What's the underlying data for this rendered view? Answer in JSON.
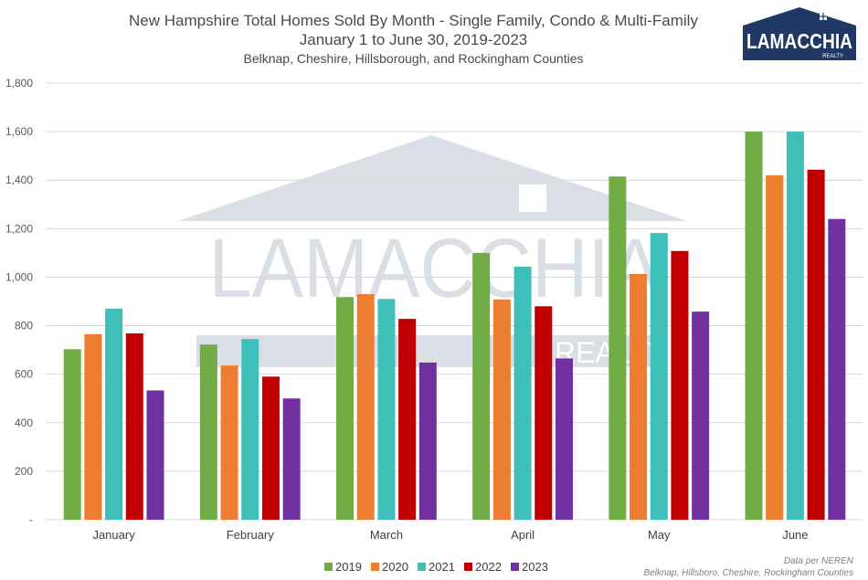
{
  "title": "New Hampshire Total Homes Sold By Month - Single Family, Condo & Multi-Family",
  "subtitle": "January 1 to June 30, 2019-2023",
  "subtitle2": "Belknap, Cheshire, Hillsborough, and Rockingham Counties",
  "logo": {
    "name": "LAMACCHIA",
    "tagline": "REALTY",
    "color": "#1f3864"
  },
  "credit": {
    "line1": "Data per NEREN",
    "line2": "Belknap, Hillsboro, Cheshire, Rockingham Counties"
  },
  "chart_data": {
    "type": "bar",
    "categories": [
      "January",
      "February",
      "March",
      "April",
      "May",
      "June"
    ],
    "series": [
      {
        "name": "2019",
        "color": "#70ad47",
        "values": [
          703,
          722,
          918,
          1100,
          1415,
          1600
        ]
      },
      {
        "name": "2020",
        "color": "#ed7d31",
        "values": [
          765,
          636,
          930,
          908,
          1013,
          1420
        ]
      },
      {
        "name": "2021",
        "color": "#3fbfb9",
        "values": [
          870,
          745,
          910,
          1043,
          1182,
          1600
        ]
      },
      {
        "name": "2022",
        "color": "#c00000",
        "values": [
          768,
          590,
          828,
          880,
          1108,
          1443
        ]
      },
      {
        "name": "2023",
        "color": "#7030a0",
        "values": [
          533,
          500,
          648,
          665,
          858,
          1240
        ]
      }
    ],
    "ylim": [
      0,
      1800
    ],
    "yticks": [
      0,
      200,
      400,
      600,
      800,
      1000,
      1200,
      1400,
      1600,
      1800
    ],
    "ytick_labels": [
      "-",
      "200",
      "400",
      "600",
      "800",
      "1,000",
      "1,200",
      "1,400",
      "1,600",
      "1,800"
    ],
    "grid": true,
    "legend": "bottom"
  }
}
